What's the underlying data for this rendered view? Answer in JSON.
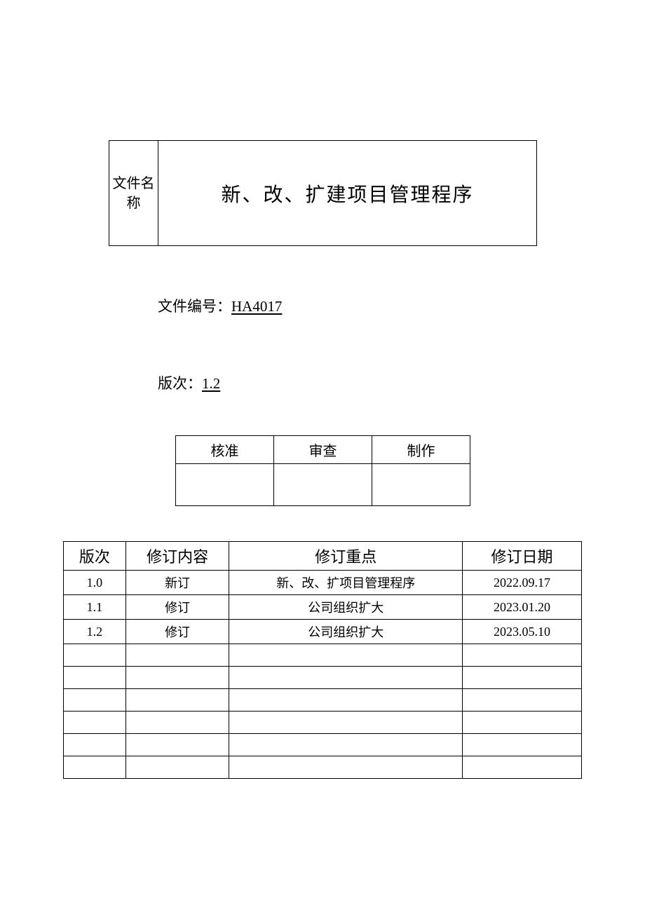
{
  "title_block": {
    "label_line1": "文件名",
    "label_line2": "称",
    "title": "新、改、扩建项目管理程序"
  },
  "doc_number": {
    "label": "文件编号：",
    "value": "HA4017"
  },
  "version": {
    "label": "版次：",
    "value": "1.2"
  },
  "approval": {
    "headers": [
      "核准",
      "审查",
      "制作"
    ],
    "cells": [
      "",
      "",
      ""
    ]
  },
  "revision_table": {
    "headers": {
      "version": "版次",
      "content": "修订内容",
      "point": "修订重点",
      "date": "修订日期"
    },
    "rows": [
      {
        "version": "1.0",
        "content": "新订",
        "point": "新、改、扩项目管理程序",
        "date": "2022.09.17"
      },
      {
        "version": "1.1",
        "content": "修订",
        "point": "公司组织扩大",
        "date": "2023.01.20"
      },
      {
        "version": "1.2",
        "content": "修订",
        "point": "公司组织扩大",
        "date": "2023.05.10"
      },
      {
        "version": "",
        "content": "",
        "point": "",
        "date": ""
      },
      {
        "version": "",
        "content": "",
        "point": "",
        "date": ""
      },
      {
        "version": "",
        "content": "",
        "point": "",
        "date": ""
      },
      {
        "version": "",
        "content": "",
        "point": "",
        "date": ""
      },
      {
        "version": "",
        "content": "",
        "point": "",
        "date": ""
      },
      {
        "version": "",
        "content": "",
        "point": "",
        "date": ""
      }
    ]
  },
  "colors": {
    "background": "#ffffff",
    "text": "#000000",
    "border": "#000000"
  }
}
